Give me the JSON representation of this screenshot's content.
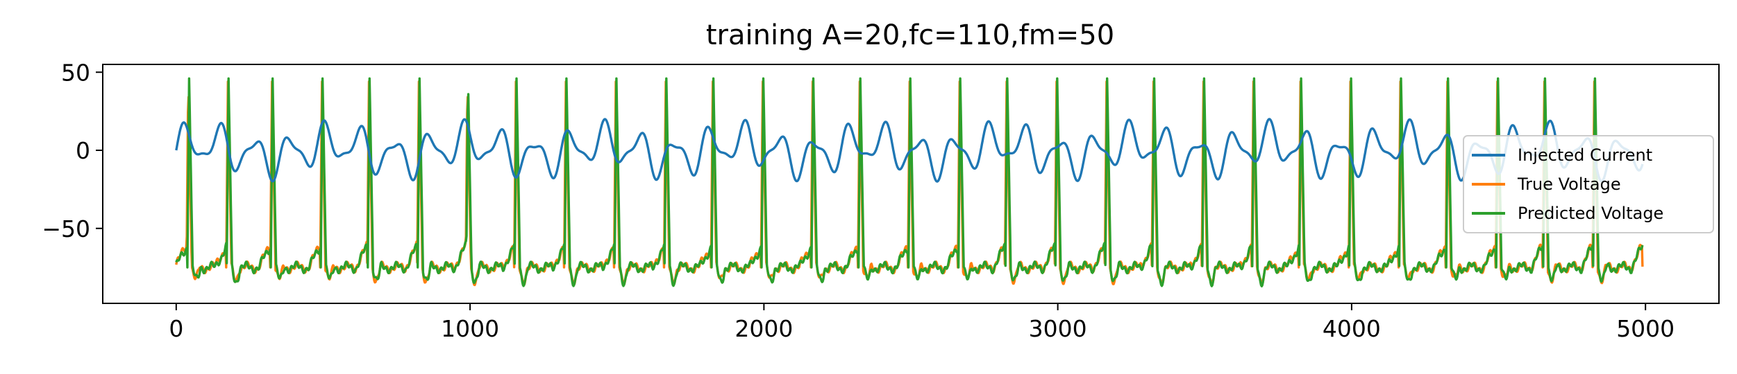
{
  "chart_data": {
    "type": "line",
    "title": "training A=20,fc=110,fm=50",
    "xlabel": "",
    "ylabel": "",
    "xlim": [
      -250,
      5250
    ],
    "ylim": [
      -98,
      55
    ],
    "xticks": [
      0,
      1000,
      2000,
      3000,
      4000,
      5000
    ],
    "xtick_labels": [
      "0",
      "1000",
      "2000",
      "3000",
      "4000",
      "5000"
    ],
    "yticks": [
      50,
      0,
      -50
    ],
    "ytick_labels": [
      "50",
      "0",
      "−50"
    ],
    "grid": false,
    "legend_position": "center-right",
    "series": [
      {
        "name": "Injected Current",
        "color": "#1f77b4",
        "model": "A*sin(2*pi*fc*t)*sin(2*pi*fm*t)",
        "amplitude": 20,
        "fc": 110,
        "fm": 50,
        "x_range": [
          0,
          4980
        ],
        "x": [
          0,
          60,
          120,
          165,
          230,
          310,
          360,
          420,
          480,
          540,
          600,
          660,
          720,
          780,
          840,
          900,
          960,
          1020,
          1080,
          1140,
          1200,
          1260,
          1320,
          1380,
          1440,
          1500,
          1560,
          1620,
          1680,
          1740,
          1800,
          1860,
          1920,
          1980,
          2040,
          2100,
          2160,
          2220,
          2280,
          2340,
          2400,
          2460,
          2520,
          2580,
          2640,
          2700,
          2760,
          2820,
          2880,
          2940,
          3000,
          3060,
          3120,
          3180,
          3240,
          3300,
          3360,
          3420,
          3480,
          3540,
          3600,
          3660,
          3720,
          3780,
          3840,
          3900,
          3960,
          4020,
          4080,
          4140,
          4200,
          4260,
          4320,
          4380,
          4440,
          4500,
          4560,
          4620,
          4680,
          4740,
          4800,
          4860,
          4920,
          4980
        ],
        "values": [
          0,
          14,
          -17,
          20,
          -12,
          20,
          -8,
          16,
          -13,
          7,
          3,
          -15,
          18,
          -10,
          16,
          -5,
          11,
          -10,
          5,
          4,
          -14,
          17,
          -8,
          15,
          -4,
          10,
          -9,
          5,
          5,
          -14,
          18,
          -9,
          16,
          -5,
          12,
          -11,
          6,
          4,
          -15,
          19,
          -10,
          17,
          -6,
          13,
          -12,
          7,
          3,
          -16,
          19,
          -11,
          17,
          -6,
          13,
          -12,
          7,
          3,
          -15,
          18,
          -10,
          16,
          -5,
          11,
          -10,
          6,
          4,
          -15,
          19,
          -11,
          17,
          -6,
          13,
          -12,
          7,
          3,
          -16,
          19,
          -11,
          17,
          -6,
          12,
          -11,
          6,
          4,
          14
        ]
      },
      {
        "name": "True Voltage",
        "color": "#ff7f0e",
        "baseline": -75,
        "spike_peak": 44,
        "undershoot": -88,
        "spike_times": [
          35,
          170,
          320,
          490,
          650,
          820,
          985,
          1150,
          1320,
          1490,
          1660,
          1820,
          1990,
          2160,
          2320,
          2490,
          2660,
          2820,
          2990,
          3160,
          3320,
          3490,
          3660,
          3820,
          3990,
          4160,
          4320,
          4490,
          4650,
          4820,
          4990
        ]
      },
      {
        "name": "Predicted Voltage",
        "color": "#2ca02c",
        "baseline": -75,
        "spike_peak": 46,
        "undershoot": -89,
        "spike_times": [
          38,
          172,
          322,
          492,
          652,
          822,
          987,
          1152,
          1322,
          1492,
          1662,
          1822,
          1992,
          2162,
          2322,
          2492,
          2662,
          2822,
          2992,
          3162,
          3322,
          3492,
          3662,
          3822,
          3992,
          4162,
          4322,
          4492,
          4652,
          4822,
          4992
        ]
      }
    ]
  }
}
